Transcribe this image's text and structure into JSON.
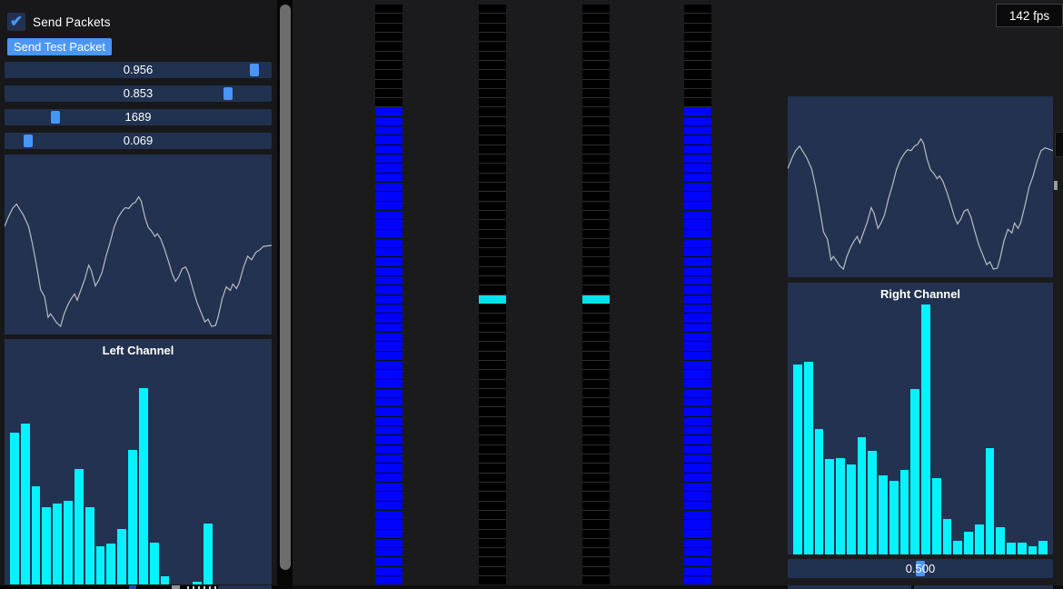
{
  "window": {
    "fps": "142 fps"
  },
  "colors": {
    "accent": "#4796fa",
    "frame_bg": "#213150",
    "plot_bg": "#223250",
    "histogram_bar": "#06f2ff",
    "meter_blue": "#0104fb",
    "meter_cyan": "#00e2ec",
    "waveform_line": "#b9bdc2"
  },
  "left_panel": {
    "send_packets": {
      "label": "Send Packets",
      "checked": true
    },
    "send_test_packet": {
      "label": "Send Test Packet"
    },
    "sliders": [
      {
        "value": "0.956",
        "fraction": 0.956
      },
      {
        "value": "0.853",
        "fraction": 0.853
      },
      {
        "value": "1689",
        "fraction": 0.175
      },
      {
        "value": "0.069",
        "fraction": 0.069
      }
    ],
    "waveform": {
      "type": "line",
      "points": [
        [
          0,
          0.4
        ],
        [
          0.015,
          0.345
        ],
        [
          0.03,
          0.3
        ],
        [
          0.045,
          0.275
        ],
        [
          0.055,
          0.3
        ],
        [
          0.07,
          0.335
        ],
        [
          0.09,
          0.4
        ],
        [
          0.105,
          0.5
        ],
        [
          0.12,
          0.62
        ],
        [
          0.135,
          0.75
        ],
        [
          0.15,
          0.79
        ],
        [
          0.163,
          0.905
        ],
        [
          0.172,
          0.885
        ],
        [
          0.182,
          0.905
        ],
        [
          0.195,
          0.935
        ],
        [
          0.21,
          0.955
        ],
        [
          0.222,
          0.89
        ],
        [
          0.237,
          0.835
        ],
        [
          0.25,
          0.8
        ],
        [
          0.262,
          0.775
        ],
        [
          0.272,
          0.81
        ],
        [
          0.285,
          0.755
        ],
        [
          0.3,
          0.695
        ],
        [
          0.315,
          0.615
        ],
        [
          0.325,
          0.645
        ],
        [
          0.34,
          0.73
        ],
        [
          0.352,
          0.7
        ],
        [
          0.365,
          0.655
        ],
        [
          0.38,
          0.565
        ],
        [
          0.395,
          0.49
        ],
        [
          0.41,
          0.405
        ],
        [
          0.425,
          0.35
        ],
        [
          0.44,
          0.315
        ],
        [
          0.452,
          0.295
        ],
        [
          0.465,
          0.3
        ],
        [
          0.478,
          0.275
        ],
        [
          0.49,
          0.265
        ],
        [
          0.502,
          0.235
        ],
        [
          0.512,
          0.26
        ],
        [
          0.525,
          0.345
        ],
        [
          0.538,
          0.405
        ],
        [
          0.55,
          0.425
        ],
        [
          0.563,
          0.455
        ],
        [
          0.572,
          0.44
        ],
        [
          0.585,
          0.47
        ],
        [
          0.6,
          0.53
        ],
        [
          0.615,
          0.6
        ],
        [
          0.628,
          0.665
        ],
        [
          0.64,
          0.705
        ],
        [
          0.652,
          0.68
        ],
        [
          0.665,
          0.635
        ],
        [
          0.678,
          0.625
        ],
        [
          0.69,
          0.665
        ],
        [
          0.705,
          0.745
        ],
        [
          0.72,
          0.82
        ],
        [
          0.735,
          0.875
        ],
        [
          0.75,
          0.93
        ],
        [
          0.762,
          0.915
        ],
        [
          0.775,
          0.955
        ],
        [
          0.79,
          0.95
        ],
        [
          0.8,
          0.9
        ],
        [
          0.815,
          0.8
        ],
        [
          0.83,
          0.735
        ],
        [
          0.845,
          0.755
        ],
        [
          0.855,
          0.72
        ],
        [
          0.868,
          0.745
        ],
        [
          0.878,
          0.715
        ],
        [
          0.895,
          0.625
        ],
        [
          0.91,
          0.565
        ],
        [
          0.925,
          0.585
        ],
        [
          0.94,
          0.545
        ],
        [
          0.955,
          0.53
        ],
        [
          0.97,
          0.51
        ],
        [
          1,
          0.505
        ]
      ]
    },
    "histogram": {
      "type": "bar",
      "title": "Left Channel",
      "values": [
        0.62,
        0.655,
        0.4,
        0.315,
        0.33,
        0.34,
        0.47,
        0.315,
        0.155,
        0.165,
        0.225,
        0.55,
        0.8,
        0.17,
        0.035,
        0,
        0,
        0.01,
        0.25,
        0,
        0,
        0,
        0,
        0
      ]
    }
  },
  "right_panel": {
    "waveform": {
      "type": "line",
      "points": [
        [
          0,
          0.4
        ],
        [
          0.015,
          0.345
        ],
        [
          0.03,
          0.3
        ],
        [
          0.045,
          0.275
        ],
        [
          0.055,
          0.3
        ],
        [
          0.07,
          0.335
        ],
        [
          0.09,
          0.4
        ],
        [
          0.105,
          0.5
        ],
        [
          0.12,
          0.62
        ],
        [
          0.135,
          0.75
        ],
        [
          0.15,
          0.79
        ],
        [
          0.163,
          0.905
        ],
        [
          0.172,
          0.885
        ],
        [
          0.182,
          0.905
        ],
        [
          0.195,
          0.935
        ],
        [
          0.21,
          0.955
        ],
        [
          0.222,
          0.89
        ],
        [
          0.237,
          0.835
        ],
        [
          0.25,
          0.8
        ],
        [
          0.262,
          0.775
        ],
        [
          0.272,
          0.81
        ],
        [
          0.285,
          0.755
        ],
        [
          0.3,
          0.695
        ],
        [
          0.315,
          0.615
        ],
        [
          0.325,
          0.645
        ],
        [
          0.34,
          0.73
        ],
        [
          0.352,
          0.7
        ],
        [
          0.365,
          0.655
        ],
        [
          0.38,
          0.565
        ],
        [
          0.395,
          0.49
        ],
        [
          0.41,
          0.405
        ],
        [
          0.425,
          0.35
        ],
        [
          0.44,
          0.315
        ],
        [
          0.452,
          0.295
        ],
        [
          0.465,
          0.3
        ],
        [
          0.478,
          0.275
        ],
        [
          0.49,
          0.265
        ],
        [
          0.502,
          0.235
        ],
        [
          0.512,
          0.26
        ],
        [
          0.525,
          0.345
        ],
        [
          0.538,
          0.405
        ],
        [
          0.55,
          0.425
        ],
        [
          0.563,
          0.455
        ],
        [
          0.572,
          0.44
        ],
        [
          0.585,
          0.47
        ],
        [
          0.6,
          0.53
        ],
        [
          0.615,
          0.6
        ],
        [
          0.628,
          0.665
        ],
        [
          0.64,
          0.705
        ],
        [
          0.652,
          0.68
        ],
        [
          0.665,
          0.635
        ],
        [
          0.678,
          0.625
        ],
        [
          0.69,
          0.665
        ],
        [
          0.705,
          0.745
        ],
        [
          0.72,
          0.82
        ],
        [
          0.735,
          0.875
        ],
        [
          0.75,
          0.93
        ],
        [
          0.762,
          0.915
        ],
        [
          0.775,
          0.955
        ],
        [
          0.79,
          0.95
        ],
        [
          0.8,
          0.9
        ],
        [
          0.815,
          0.8
        ],
        [
          0.83,
          0.735
        ],
        [
          0.845,
          0.755
        ],
        [
          0.855,
          0.7
        ],
        [
          0.868,
          0.73
        ],
        [
          0.878,
          0.7
        ],
        [
          0.895,
          0.6
        ],
        [
          0.91,
          0.5
        ],
        [
          0.925,
          0.44
        ],
        [
          0.94,
          0.36
        ],
        [
          0.955,
          0.3
        ],
        [
          0.97,
          0.285
        ],
        [
          1,
          0.3
        ]
      ]
    },
    "histogram": {
      "type": "bar",
      "title": "Right Channel",
      "values": [
        0.7,
        0.71,
        0.46,
        0.35,
        0.355,
        0.33,
        0.43,
        0.38,
        0.29,
        0.27,
        0.31,
        0.61,
        0.92,
        0.28,
        0.13,
        0.05,
        0.085,
        0.11,
        0.39,
        0.1,
        0.045,
        0.045,
        0.03,
        0.05
      ]
    },
    "slider": {
      "value": "0.500",
      "fraction": 0.5
    }
  },
  "meters": {
    "cell_count": 62,
    "columns": [
      {
        "id": "meter-1",
        "mode": "filled",
        "empty_top_cells": 11
      },
      {
        "id": "meter-2",
        "mode": "single",
        "active_cell": 31
      },
      {
        "id": "meter-3",
        "mode": "single",
        "active_cell": 31
      },
      {
        "id": "meter-4",
        "mode": "filled",
        "empty_top_cells": 11
      }
    ]
  }
}
